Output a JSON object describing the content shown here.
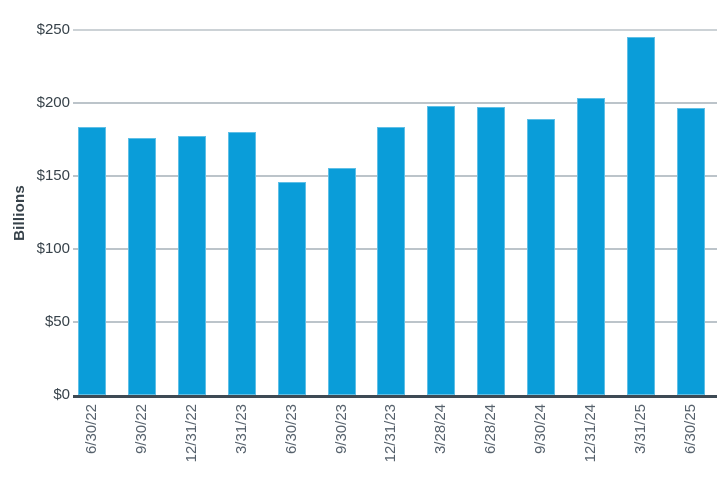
{
  "chart": {
    "ylabel": "Billions"
  },
  "chart_data": {
    "type": "bar",
    "title": "",
    "xlabel": "",
    "ylabel": "Billions",
    "categories": [
      "6/30/22",
      "9/30/22",
      "12/31/22",
      "3/31/23",
      "6/30/23",
      "9/30/23",
      "12/31/23",
      "3/28/24",
      "6/28/24",
      "9/30/24",
      "12/31/24",
      "3/31/25",
      "6/30/25"
    ],
    "values": [
      183,
      176,
      177,
      180,
      146,
      155,
      183,
      198,
      197,
      189,
      203,
      245,
      196
    ],
    "unit": "USD billions",
    "ylim": [
      0,
      250
    ],
    "ytick_step": 50,
    "ytick_labels": [
      "$0",
      "$50",
      "$100",
      "$150",
      "$200",
      "$250"
    ],
    "grid": true,
    "legend": "none",
    "colors": {
      "bar": "#0a9dd9",
      "gridline": "#bcc4ca",
      "top_gridline": "#ccd2d6",
      "axis_line": "#3e4a54",
      "ytick_text": "#37424a",
      "xtick_text": "#55606b"
    }
  }
}
